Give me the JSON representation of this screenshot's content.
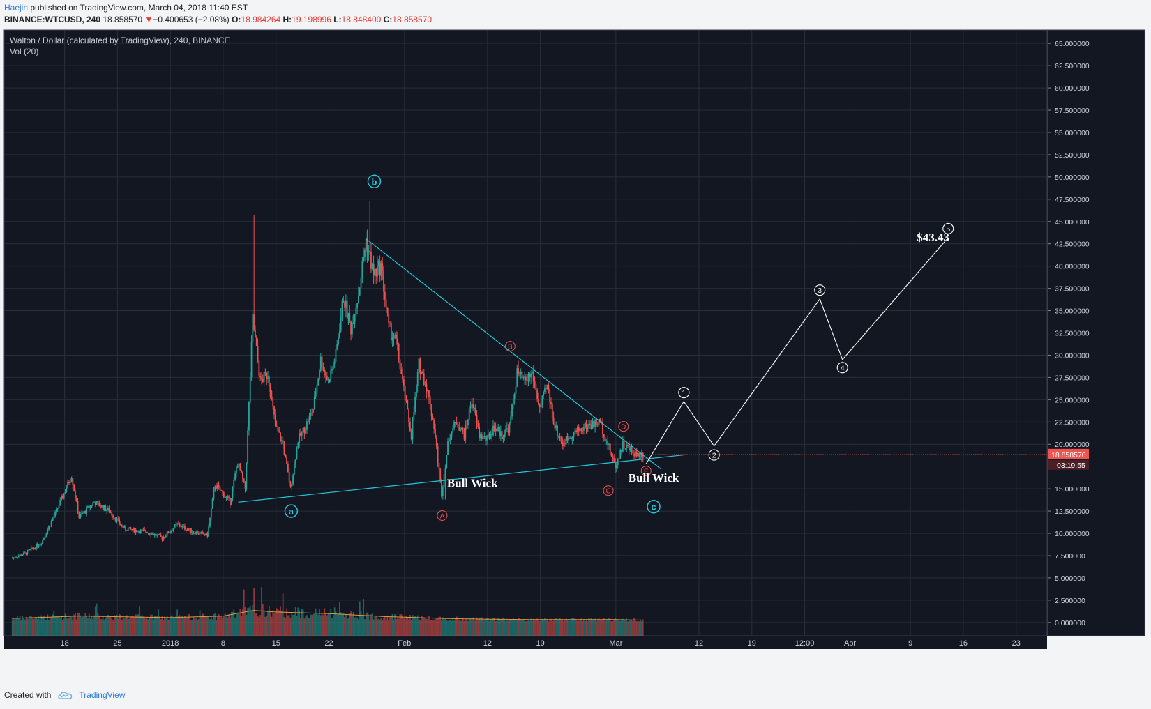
{
  "header": {
    "author": "Haejin",
    "published": "published on TradingView.com, March 04, 2018 11:40 EST",
    "symbol": "BINANCE:WTCUSD, 240",
    "last": "18.858570",
    "change_arrow": "▼",
    "change": "−0.400653 (−2.08%)",
    "o_label": "O:",
    "o": "18.984264",
    "h_label": "H:",
    "h": "19.198996",
    "l_label": "L:",
    "l": "18.848400",
    "c_label": "C:",
    "c": "18.858570"
  },
  "footer": {
    "created_with": "Created with",
    "brand": "TradingView",
    "brand_icon": "tradingview-logo-icon"
  },
  "colors": {
    "background": "#131722",
    "grid": "#2a2e39",
    "up": "#26a69a",
    "down": "#ef5350",
    "trendline": "#26c6da",
    "projection": "#ffffff",
    "wave_abc": "#26c6da",
    "wave_ae": "#ef5350",
    "price_label": "#ef5350"
  },
  "chart_data": {
    "type": "candlestick",
    "title": "Walton / Dollar (calculated by TradingView), 240, BINANCE",
    "indicator": "Vol (20)",
    "ylim": [
      -1.5,
      66.5
    ],
    "y_ticks": [
      "65.000000",
      "62.500000",
      "60.000000",
      "57.500000",
      "55.000000",
      "52.500000",
      "50.000000",
      "47.500000",
      "45.000000",
      "42.500000",
      "40.000000",
      "37.500000",
      "35.000000",
      "32.500000",
      "30.000000",
      "27.500000",
      "25.000000",
      "22.500000",
      "20.000000",
      "15.000000",
      "12.500000",
      "10.000000",
      "7.500000",
      "5.000000",
      "2.500000",
      "0.000000"
    ],
    "y_tick_values": [
      65,
      62.5,
      60,
      57.5,
      55,
      52.5,
      50,
      47.5,
      45,
      42.5,
      40,
      37.5,
      35,
      32.5,
      30,
      27.5,
      25,
      22.5,
      20,
      15,
      12.5,
      10,
      7.5,
      5,
      2.5,
      0
    ],
    "x_ticks": [
      {
        "label": "18",
        "date": "2017-12-18"
      },
      {
        "label": "25",
        "date": "2017-12-25"
      },
      {
        "label": "2018",
        "date": "2018-01-01"
      },
      {
        "label": "8",
        "date": "2018-01-08"
      },
      {
        "label": "15",
        "date": "2018-01-15"
      },
      {
        "label": "22",
        "date": "2018-01-22"
      },
      {
        "label": "Feb",
        "date": "2018-02-01"
      },
      {
        "label": "12",
        "date": "2018-02-12"
      },
      {
        "label": "19",
        "date": "2018-02-19"
      },
      {
        "label": "Mar",
        "date": "2018-03-01"
      },
      {
        "label": "12",
        "date": "2018-03-12"
      },
      {
        "label": "19",
        "date": "2018-03-19"
      },
      {
        "label": "12:00",
        "date": "2018-03-26"
      },
      {
        "label": "Apr",
        "date": "2018-04-01"
      },
      {
        "label": "9",
        "date": "2018-04-09"
      },
      {
        "label": "16",
        "date": "2018-04-16"
      },
      {
        "label": "23",
        "date": "2018-04-23"
      }
    ],
    "price_path": [
      [
        "2017-12-11",
        7.2
      ],
      [
        "2017-12-13",
        7.8
      ],
      [
        "2017-12-15",
        9.0
      ],
      [
        "2017-12-17",
        12.5
      ],
      [
        "2017-12-19",
        16.5
      ],
      [
        "2017-12-20",
        11.8
      ],
      [
        "2017-12-22",
        13.5
      ],
      [
        "2017-12-24",
        12.5
      ],
      [
        "2017-12-26",
        10.5
      ],
      [
        "2017-12-29",
        10.2
      ],
      [
        "2017-12-31",
        9.5
      ],
      [
        "2018-01-02",
        11.0
      ],
      [
        "2018-01-04",
        10.2
      ],
      [
        "2018-01-06",
        9.8
      ],
      [
        "2018-01-07",
        15.5
      ],
      [
        "2018-01-09",
        13.5
      ],
      [
        "2018-01-10",
        18.0
      ],
      [
        "2018-01-11",
        15.0
      ],
      [
        "2018-01-12",
        34.0
      ],
      [
        "2018-01-13",
        27.0
      ],
      [
        "2018-01-14",
        28.0
      ],
      [
        "2018-01-15",
        22.0
      ],
      [
        "2018-01-16",
        20.0
      ],
      [
        "2018-01-17",
        15.0
      ],
      [
        "2018-01-18",
        20.5
      ],
      [
        "2018-01-19",
        22.0
      ],
      [
        "2018-01-20",
        24.0
      ],
      [
        "2018-01-21",
        29.5
      ],
      [
        "2018-01-22",
        27.0
      ],
      [
        "2018-01-23",
        30.0
      ],
      [
        "2018-01-24",
        36.5
      ],
      [
        "2018-01-25",
        33.0
      ],
      [
        "2018-01-26",
        37.0
      ],
      [
        "2018-01-27",
        43.0
      ],
      [
        "2018-01-28",
        39.0
      ],
      [
        "2018-01-29",
        40.0
      ],
      [
        "2018-01-30",
        33.0
      ],
      [
        "2018-01-31",
        31.5
      ],
      [
        "2018-02-01",
        26.0
      ],
      [
        "2018-02-02",
        21.0
      ],
      [
        "2018-02-03",
        29.0
      ],
      [
        "2018-02-04",
        26.5
      ],
      [
        "2018-02-05",
        22.0
      ],
      [
        "2018-02-06",
        14.5
      ],
      [
        "2018-02-07",
        21.0
      ],
      [
        "2018-02-08",
        22.5
      ],
      [
        "2018-02-09",
        21.0
      ],
      [
        "2018-02-10",
        25.0
      ],
      [
        "2018-02-11",
        21.0
      ],
      [
        "2018-02-12",
        20.5
      ],
      [
        "2018-02-13",
        22.0
      ],
      [
        "2018-02-14",
        21.0
      ],
      [
        "2018-02-15",
        22.0
      ],
      [
        "2018-02-16",
        28.0
      ],
      [
        "2018-02-17",
        27.0
      ],
      [
        "2018-02-18",
        28.0
      ],
      [
        "2018-02-19",
        24.0
      ],
      [
        "2018-02-20",
        26.5
      ],
      [
        "2018-02-21",
        22.0
      ],
      [
        "2018-02-22",
        20.0
      ],
      [
        "2018-02-23",
        21.0
      ],
      [
        "2018-02-25",
        22.0
      ],
      [
        "2018-02-27",
        22.5
      ],
      [
        "2018-02-28",
        20.0
      ],
      [
        "2018-03-01",
        17.5
      ],
      [
        "2018-03-02",
        20.0
      ],
      [
        "2018-03-03",
        19.3
      ],
      [
        "2018-03-04",
        18.86
      ]
    ],
    "volume_level": [
      [
        "2017-12-11",
        1.0
      ],
      [
        "2017-12-20",
        1.6
      ],
      [
        "2018-01-01",
        1.2
      ],
      [
        "2018-01-08",
        1.6
      ],
      [
        "2018-01-12",
        3.0
      ],
      [
        "2018-01-15",
        2.6
      ],
      [
        "2018-01-22",
        2.2
      ],
      [
        "2018-01-29",
        1.5
      ],
      [
        "2018-02-06",
        1.0
      ],
      [
        "2018-02-12",
        0.8
      ],
      [
        "2018-02-19",
        0.7
      ],
      [
        "2018-03-01",
        0.7
      ],
      [
        "2018-03-04",
        0.6
      ]
    ],
    "extremes": {
      "volume_spike": [
        "2018-01-12",
        45.7
      ],
      "peak_wick": [
        "2018-01-27",
        47.3
      ],
      "feb_wick_low": [
        "2018-02-06",
        13.8
      ],
      "mar_wick_low": [
        "2018-03-01",
        16.2
      ]
    },
    "trendlines": [
      {
        "name": "upper",
        "from": [
          "2018-01-27",
          43.0
        ],
        "to": [
          "2018-03-07",
          17.2
        ]
      },
      {
        "name": "lower",
        "from": [
          "2018-01-10",
          13.5
        ],
        "to": [
          "2018-03-10",
          18.8
        ]
      }
    ],
    "projection": [
      [
        "2018-03-05",
        17.8
      ],
      [
        "2018-03-10",
        24.8
      ],
      [
        "2018-03-14",
        19.8
      ],
      [
        "2018-03-28",
        36.3
      ],
      [
        "2018-03-31",
        29.5
      ],
      [
        "2018-04-14",
        43.2
      ]
    ],
    "wave_labels": [
      {
        "text": "a",
        "date": "2018-01-17",
        "price": 12.5,
        "group": "abc"
      },
      {
        "text": "b",
        "date": "2018-01-28",
        "price": 49.5,
        "group": "abc"
      },
      {
        "text": "c",
        "date": "2018-03-06",
        "price": 13.0,
        "group": "abc"
      },
      {
        "text": "A",
        "date": "2018-02-06",
        "price": 12.0,
        "group": "ae"
      },
      {
        "text": "B",
        "date": "2018-02-15",
        "price": 31.0,
        "group": "ae"
      },
      {
        "text": "C",
        "date": "2018-02-28",
        "price": 14.8,
        "group": "ae"
      },
      {
        "text": "D",
        "date": "2018-03-02",
        "price": 22.0,
        "group": "ae"
      },
      {
        "text": "E",
        "date": "2018-03-05",
        "price": 17.0,
        "group": "ae"
      },
      {
        "text": "1",
        "date": "2018-03-10",
        "price": 25.8,
        "group": "impulse"
      },
      {
        "text": "2",
        "date": "2018-03-14",
        "price": 18.8,
        "group": "impulse"
      },
      {
        "text": "3",
        "date": "2018-03-28",
        "price": 37.3,
        "group": "impulse"
      },
      {
        "text": "4",
        "date": "2018-03-31",
        "price": 28.6,
        "group": "impulse"
      },
      {
        "text": "5",
        "date": "2018-04-14",
        "price": 44.2,
        "group": "impulse"
      }
    ],
    "annotations": [
      {
        "text": "Bull Wick",
        "date": "2018-02-10",
        "price": 15.2
      },
      {
        "text": "Bull Wick",
        "date": "2018-03-06",
        "price": 15.8
      },
      {
        "text": "$43.43",
        "date": "2018-04-12",
        "price": 42.8
      }
    ],
    "price_label": "18.858570",
    "countdown_label": "03:19:55"
  }
}
